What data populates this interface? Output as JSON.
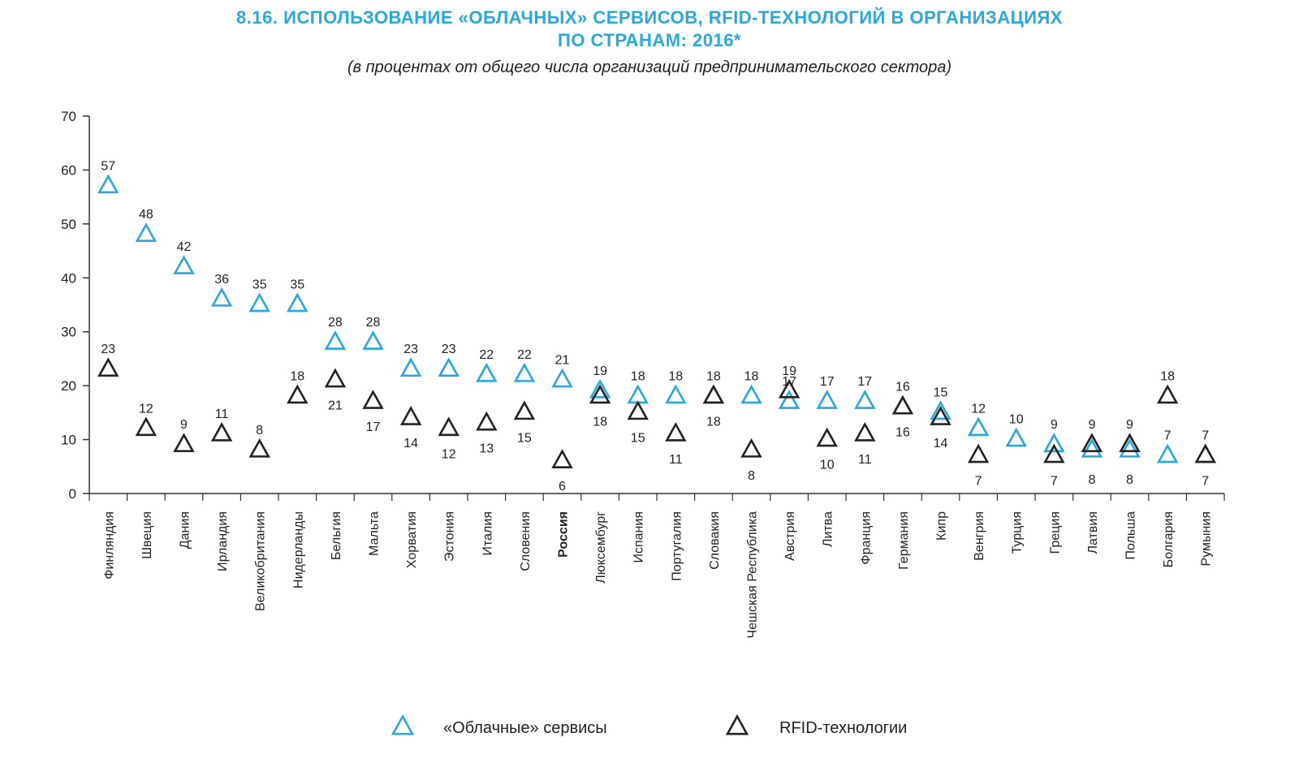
{
  "header": {
    "title_line1": "8.16. ИСПОЛЬЗОВАНИЕ «ОБЛАЧНЫХ» СЕРВИСОВ, RFID-ТЕХНОЛОГИЙ В ОРГАНИЗАЦИЯХ",
    "title_line2": "ПО СТРАНАМ: 2016*",
    "subtitle": "(в процентах от общего числа организаций предпринимательского сектора)"
  },
  "colors": {
    "cloud": "#29a8df",
    "rfid": "#222222",
    "axis": "#333333"
  },
  "chart_data": {
    "type": "scatter",
    "title": "8.16. ИСПОЛЬЗОВАНИЕ «ОБЛАЧНЫХ» СЕРВИСОВ, RFID-ТЕХНОЛОГИЙ В ОРГАНИЗАЦИЯХ ПО СТРАНАМ: 2016*",
    "subtitle": "(в процентах от общего числа организаций предпринимательского сектора)",
    "ylim": [
      0,
      70
    ],
    "yticks": [
      "0",
      "10",
      "20",
      "30",
      "40",
      "50",
      "60",
      "70"
    ],
    "legend_position": "bottom",
    "grid": false,
    "categories": [
      "Финляндия",
      "Швеция",
      "Дания",
      "Ирландия",
      "Великобритания",
      "Нидерланды",
      "Бельгия",
      "Мальта",
      "Хорватия",
      "Эстония",
      "Италия",
      "Словения",
      "Россия",
      "Люксембург",
      "Испания",
      "Португалия",
      "Словакия",
      "Чешская Республика",
      "Австрия",
      "Литва",
      "Франция",
      "Германия",
      "Кипр",
      "Венгрия",
      "Турция",
      "Греция",
      "Латвия",
      "Польша",
      "Болгария",
      "Румыния"
    ],
    "highlight_category": "Россия",
    "series": [
      {
        "name": "«Облачные» сервисы",
        "values": [
          57,
          48,
          42,
          36,
          35,
          35,
          28,
          28,
          23,
          23,
          22,
          22,
          21,
          19,
          18,
          18,
          18,
          18,
          17,
          17,
          17,
          16,
          15,
          12,
          10,
          9,
          8,
          8,
          7,
          7
        ],
        "labels": [
          "57",
          "48",
          "42",
          "36",
          "35",
          "35",
          "28",
          "28",
          "23",
          "23",
          "22",
          "22",
          "21",
          "19",
          "18",
          "18",
          "18",
          "18",
          "17",
          "17",
          "17",
          "16",
          "15",
          "12",
          "10",
          "9",
          "",
          "",
          "7",
          "7"
        ]
      },
      {
        "name": "RFID-технологии",
        "values": [
          23,
          12,
          9,
          11,
          8,
          18,
          21,
          17,
          14,
          12,
          13,
          15,
          6,
          18,
          15,
          11,
          18,
          8,
          19,
          10,
          11,
          16,
          14,
          7,
          null,
          7,
          9,
          9,
          18,
          7
        ],
        "labels": [
          "23",
          "12",
          "9",
          "11",
          "8",
          "18",
          "21",
          "17",
          "14",
          "12",
          "13",
          "15",
          "6",
          "18",
          "15",
          "11",
          "18",
          "8",
          "19",
          "10",
          "11",
          "16",
          "14",
          "7",
          "",
          "7",
          "9",
          "9",
          "18",
          "7"
        ],
        "label_positions": [
          "above",
          "above",
          "above",
          "above",
          "above",
          "above",
          "below",
          "below",
          "below",
          "below",
          "below",
          "below",
          "below",
          "below",
          "below",
          "below",
          "below",
          "below",
          "above",
          "below",
          "below",
          "below",
          "below",
          "below",
          "",
          "below",
          "above",
          "above",
          "above",
          "below"
        ]
      }
    ],
    "extra_labels": [
      {
        "category": "Латвия",
        "text": "8"
      },
      {
        "category": "Польша",
        "text": "8"
      }
    ]
  },
  "legend": {
    "cloud_label": "«Облачные» сервисы",
    "rfid_label": "RFID-технологии"
  }
}
